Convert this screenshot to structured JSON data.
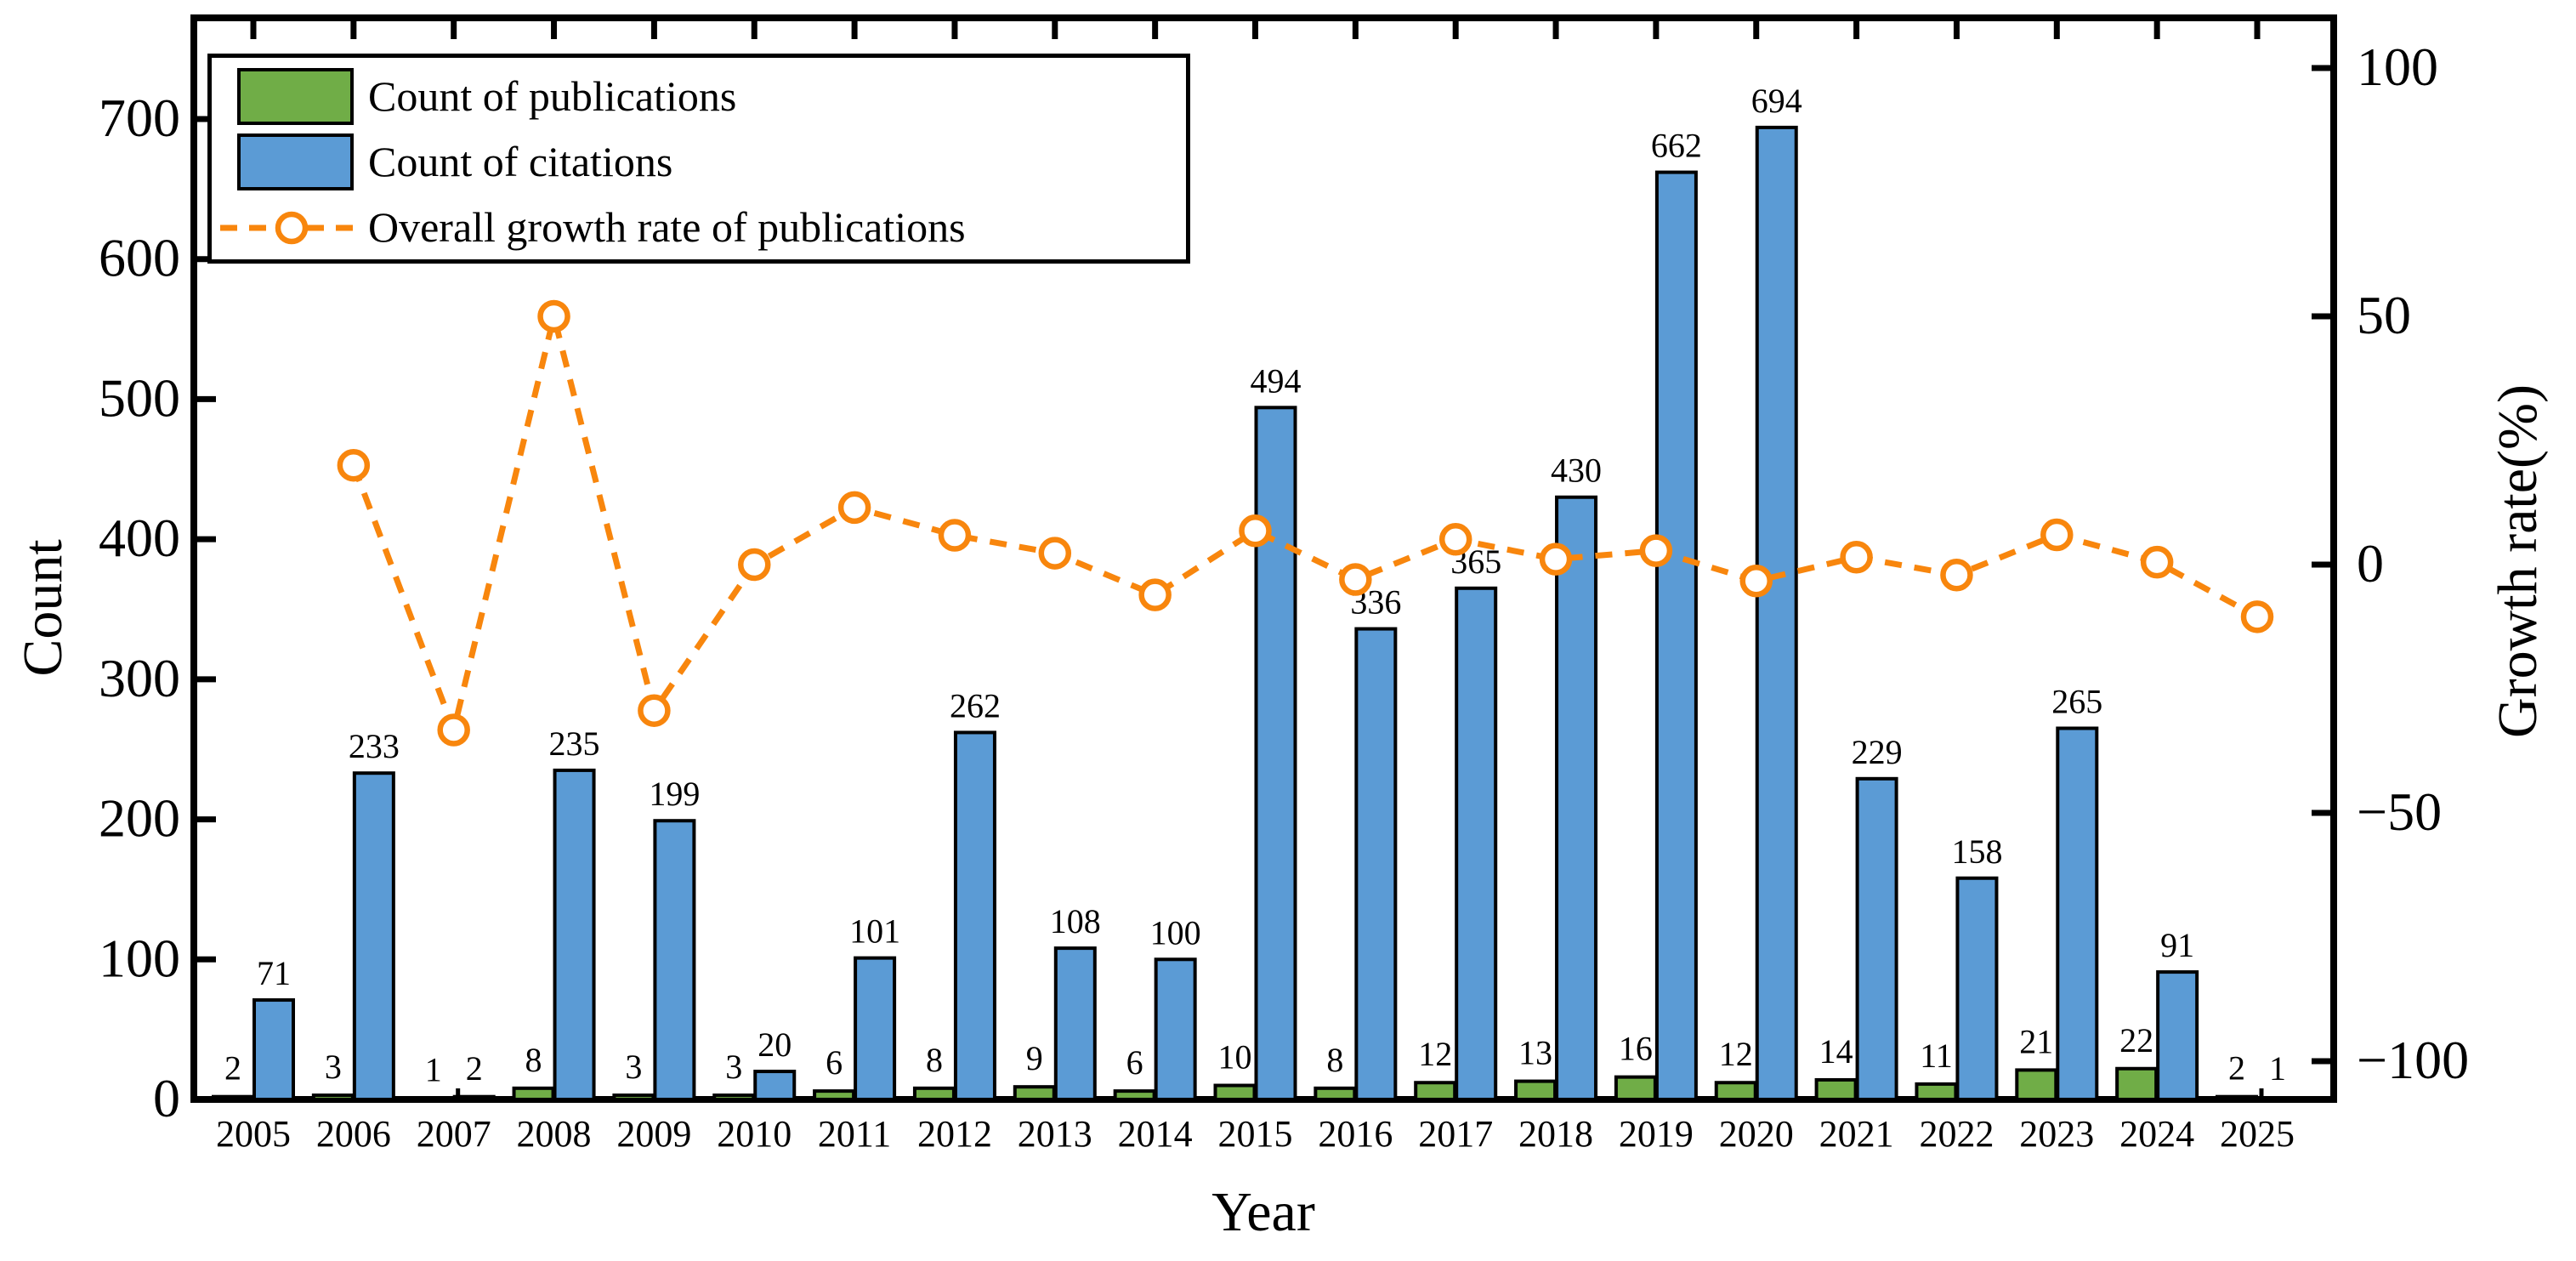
{
  "chart_data": {
    "type": "bar+line-dual-axis",
    "background": "#ffffff",
    "grid": false,
    "x": {
      "label": "Year",
      "categories": [
        "2005",
        "2006",
        "2007",
        "2008",
        "2009",
        "2010",
        "2011",
        "2012",
        "2013",
        "2014",
        "2015",
        "2016",
        "2017",
        "2018",
        "2019",
        "2020",
        "2021",
        "2022",
        "2023",
        "2024",
        "2025"
      ]
    },
    "y_left": {
      "label": "Count",
      "ticks": [
        0,
        100,
        200,
        300,
        400,
        500,
        600,
        700
      ],
      "range": [
        0,
        772
      ]
    },
    "y_right": {
      "label": "Growth rate(%)",
      "ticks": [
        100,
        50,
        0,
        -50,
        -100
      ],
      "range": [
        -107.7,
        110.1
      ]
    },
    "series": [
      {
        "name": "Count of publications",
        "type": "bar",
        "axis": "left",
        "color": "#70AD47",
        "values": [
          2,
          3,
          1,
          8,
          3,
          3,
          6,
          8,
          9,
          6,
          10,
          8,
          12,
          13,
          16,
          12,
          14,
          11,
          21,
          22,
          2
        ]
      },
      {
        "name": "Count of citations",
        "type": "bar",
        "axis": "left",
        "color": "#5B9BD5",
        "values": [
          71,
          233,
          2,
          235,
          199,
          20,
          101,
          262,
          108,
          100,
          494,
          336,
          365,
          430,
          662,
          694,
          229,
          158,
          265,
          91,
          1
        ]
      },
      {
        "name": "Overall growth rate of publications",
        "type": "line",
        "axis": "right",
        "color": "#F8860D",
        "linestyle": "dashed",
        "marker": "open-circle",
        "values": [
          null,
          20.0,
          -33.3,
          50.0,
          -29.4,
          0.0,
          11.5,
          5.9,
          2.3,
          -6.1,
          6.8,
          -3.0,
          5.1,
          1.1,
          2.8,
          -3.3,
          1.5,
          -2.1,
          6.0,
          0.5,
          -10.5
        ]
      }
    ],
    "legend": {
      "position": "top-left"
    }
  }
}
